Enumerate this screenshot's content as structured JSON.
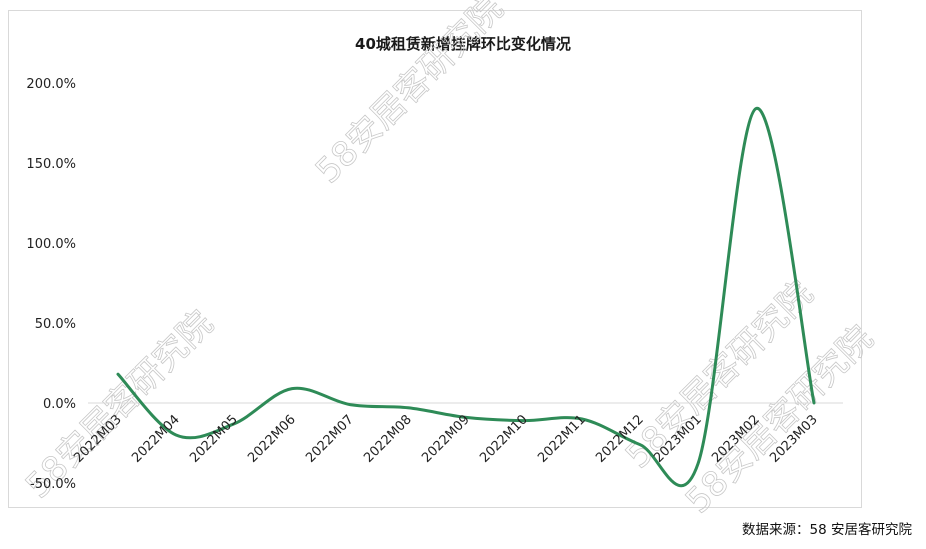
{
  "chart_data": {
    "type": "line",
    "title": "40城租赁新增挂牌环比变化情况",
    "categories": [
      "2022M03",
      "2022M04",
      "2022M05",
      "2022M06",
      "2022M07",
      "2022M08",
      "2022M09",
      "2022M10",
      "2022M11",
      "2022M12",
      "2023M01",
      "2023M02",
      "2023M03"
    ],
    "series": [
      {
        "values": [
          18,
          -20,
          -13,
          9,
          -1,
          -3,
          -9,
          -11,
          -10,
          -26,
          -38,
          184,
          0
        ]
      }
    ],
    "ylim": [
      -50,
      200
    ],
    "yticks": [
      "200.0%",
      "150.0%",
      "100.0%",
      "50.0%",
      "0.0%",
      "-50.0%"
    ],
    "ytick_values": [
      200,
      150,
      100,
      50,
      0,
      -50
    ],
    "xlabel": "",
    "ylabel": "",
    "grid": false,
    "line_color": "#2e8b57"
  },
  "source": "数据来源：58 安居客研究院",
  "watermark": "58安居客研究院"
}
